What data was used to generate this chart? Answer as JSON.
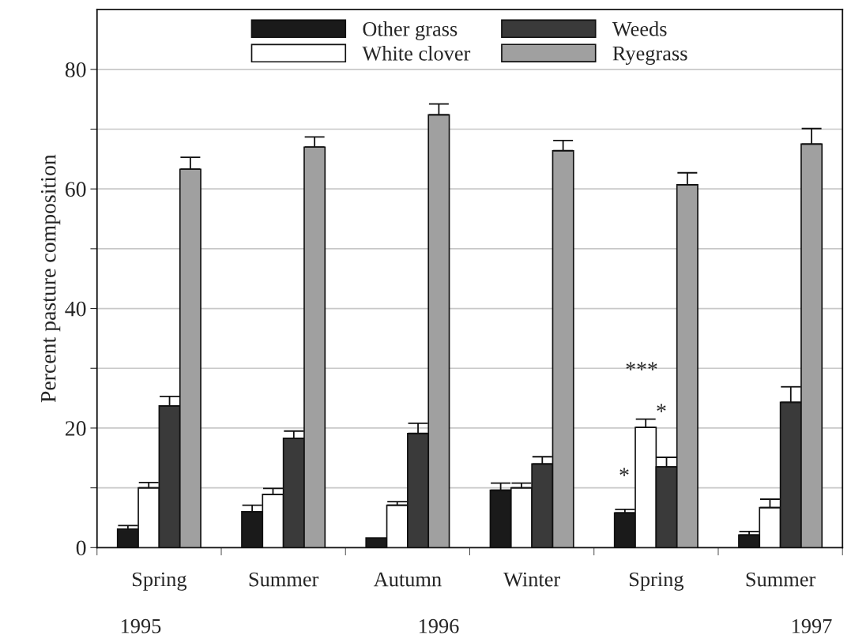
{
  "chart_data": {
    "type": "bar",
    "ylabel": "Percent pasture composition",
    "categories": [
      "Spring",
      "Summer",
      "Autumn",
      "Winter",
      "Spring",
      "Summer"
    ],
    "series": [
      {
        "name": "Other grass",
        "color": "#1a1a1a",
        "values": [
          3.1,
          6.0,
          1.6,
          9.6,
          5.8,
          2.1
        ],
        "errors": [
          [
            3.1,
            3.7
          ],
          [
            6.0,
            7.1
          ],
          null,
          [
            9.6,
            10.8
          ],
          [
            5.8,
            6.4
          ],
          [
            2.1,
            2.7
          ]
        ]
      },
      {
        "name": "White clover",
        "color": "#ffffff",
        "values": [
          10.0,
          8.9,
          7.1,
          10.0,
          20.1,
          6.7
        ],
        "errors": [
          [
            10.0,
            10.9
          ],
          [
            8.9,
            9.9
          ],
          [
            7.1,
            7.7
          ],
          [
            10.0,
            10.8
          ],
          [
            20.1,
            21.5
          ],
          [
            6.7,
            8.1
          ]
        ]
      },
      {
        "name": "Weeds",
        "color": "#3a3a3a",
        "values": [
          23.7,
          18.3,
          19.1,
          14.0,
          13.5,
          24.3
        ],
        "errors": [
          [
            23.7,
            25.3
          ],
          [
            18.3,
            19.5
          ],
          [
            19.1,
            20.8
          ],
          [
            14.0,
            15.2
          ],
          [
            13.5,
            15.1
          ],
          [
            24.3,
            26.9
          ]
        ]
      },
      {
        "name": "Ryegrass",
        "color": "#a0a0a0",
        "values": [
          63.3,
          67.0,
          72.4,
          66.4,
          60.7,
          67.5
        ],
        "errors": [
          [
            63.3,
            65.3
          ],
          [
            67.0,
            68.7
          ],
          [
            72.4,
            74.2
          ],
          [
            66.4,
            68.1
          ],
          [
            60.7,
            62.7
          ],
          [
            67.5,
            70.1
          ]
        ]
      }
    ],
    "ylim": [
      0,
      90
    ],
    "yticks": [
      0,
      {
        "value": 10,
        "label": null
      },
      20,
      {
        "value": 30,
        "label": null
      },
      40,
      {
        "value": 50,
        "label": null
      },
      60,
      {
        "value": 70,
        "label": null
      },
      80
    ],
    "grid": "y",
    "legend": "top",
    "annotations": [
      "1995",
      "1996",
      "1997",
      "*",
      "***",
      "*"
    ]
  }
}
